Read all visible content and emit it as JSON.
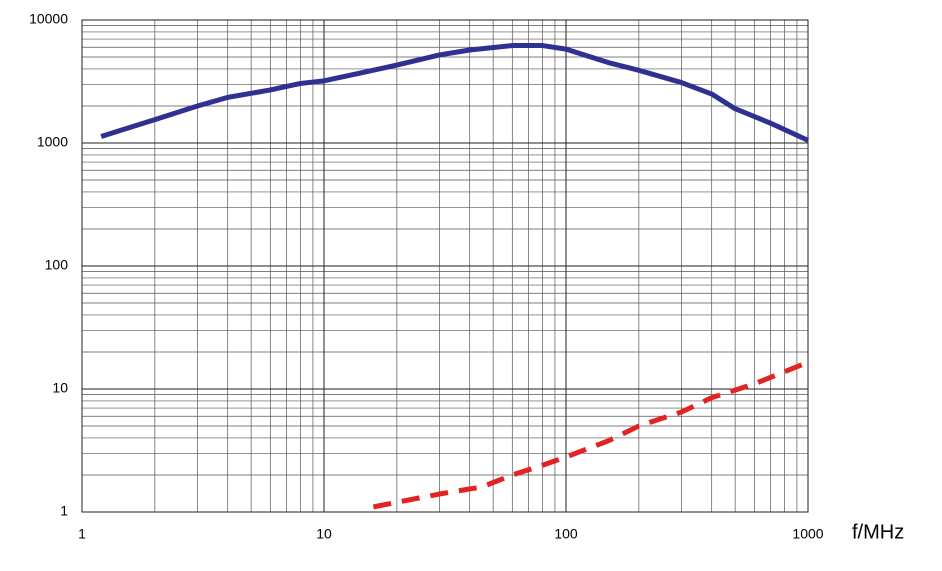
{
  "chart_data": {
    "type": "line",
    "xlabel": "f/MHz",
    "log_x": true,
    "log_y": true,
    "grid": true,
    "minor_grid": true,
    "xlim": [
      1,
      1000
    ],
    "ylim": [
      1,
      10000
    ],
    "xticks": [
      1,
      10,
      100,
      1000
    ],
    "yticks": [
      1,
      10,
      100,
      1000,
      10000
    ],
    "series": [
      {
        "color": "#2e3192",
        "style": "solid",
        "x": [
          1.2,
          2,
          3,
          4,
          6,
          8,
          10,
          15,
          20,
          30,
          40,
          60,
          80,
          100,
          150,
          200,
          300,
          400,
          500,
          700,
          1000
        ],
        "values": [
          1130,
          1550,
          2000,
          2350,
          2700,
          3050,
          3200,
          3800,
          4300,
          5200,
          5700,
          6200,
          6200,
          5800,
          4500,
          3900,
          3100,
          2500,
          1900,
          1450,
          1050
        ]
      },
      {
        "color": "#e32222",
        "style": "dashed",
        "x": [
          16,
          20,
          30,
          45,
          60,
          80,
          100,
          150,
          200,
          300,
          400,
          600,
          1000
        ],
        "values": [
          1.1,
          1.2,
          1.4,
          1.6,
          2.0,
          2.4,
          2.8,
          3.8,
          5.0,
          6.5,
          8.5,
          11,
          16.5
        ]
      }
    ]
  }
}
